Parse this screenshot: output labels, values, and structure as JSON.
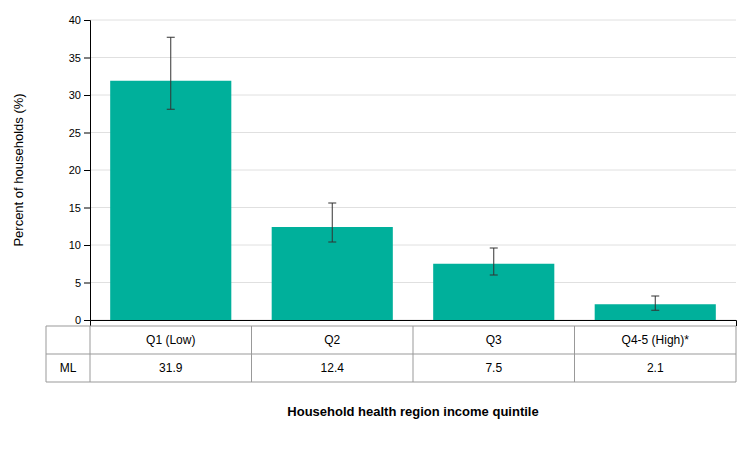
{
  "chart_data": {
    "type": "bar",
    "categories": [
      "Q1 (Low)",
      "Q2",
      "Q3",
      "Q4-5 (High)*"
    ],
    "values": [
      31.9,
      12.4,
      7.5,
      2.1
    ],
    "errors_upper": [
      5.8,
      3.2,
      2.1,
      1.1
    ],
    "errors_lower": [
      3.8,
      2.0,
      1.5,
      0.8
    ],
    "color": "#00B09B",
    "ylabel": "Percent of households (%)",
    "xlabel": "Household health region income quintile",
    "ylim": [
      0,
      40
    ],
    "yticks": [
      0,
      5,
      10,
      15,
      20,
      25,
      30,
      35,
      40
    ],
    "grid": true,
    "tick_labels": "y",
    "data_labels": true,
    "table_row_label": "ML"
  }
}
